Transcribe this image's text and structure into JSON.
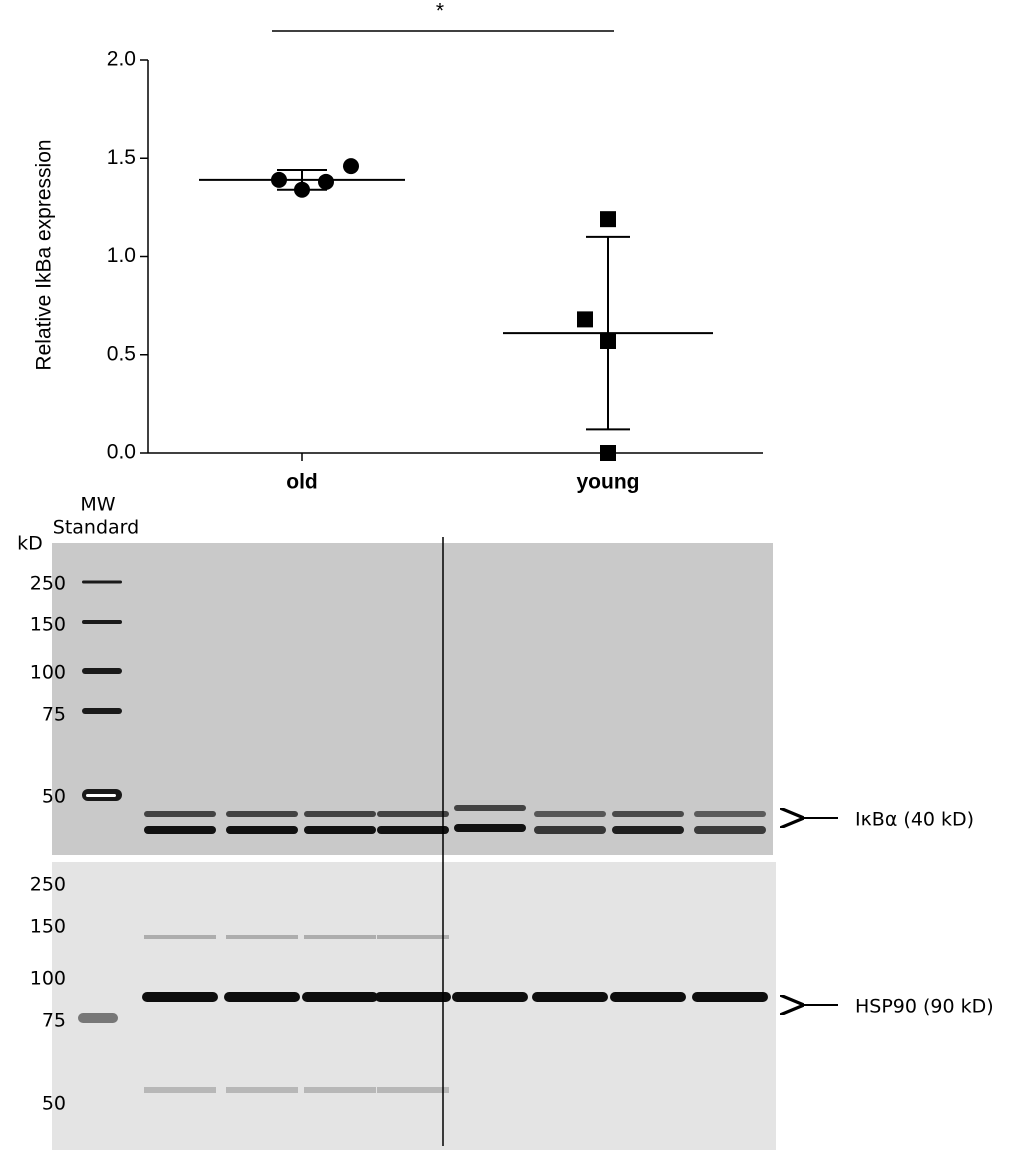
{
  "chart_data": {
    "type": "dotplot",
    "ylabel": "Relative IkBa expression",
    "annotation": "*",
    "categories": [
      "old",
      "young"
    ],
    "groups": [
      {
        "marker": "circle",
        "values": [
          1.39,
          1.34,
          1.38,
          1.46
        ],
        "mean": 1.39,
        "sd": 0.05
      },
      {
        "marker": "square",
        "values": [
          1.19,
          0.68,
          0.57,
          0.0
        ],
        "mean": 0.61,
        "sd": 0.49
      }
    ],
    "color": "#000000",
    "ylim": [
      0,
      2
    ],
    "yticks": [
      {
        "value": 0,
        "label": "0.0"
      },
      0.5,
      {
        "value": 1,
        "label": "1.0"
      },
      1.5,
      {
        "value": 2,
        "label": "2.0"
      }
    ]
  },
  "blot": {
    "mw_label": "MW",
    "standard_label": "Standard",
    "unit_label": "kD",
    "upper_markers": [
      250,
      150,
      100,
      75,
      50
    ],
    "lower_markers": [
      250,
      150,
      100,
      75,
      50
    ],
    "upper_band_label": "IκBα (40 kD)",
    "lower_band_label": "HSP90 (90 kD)"
  }
}
